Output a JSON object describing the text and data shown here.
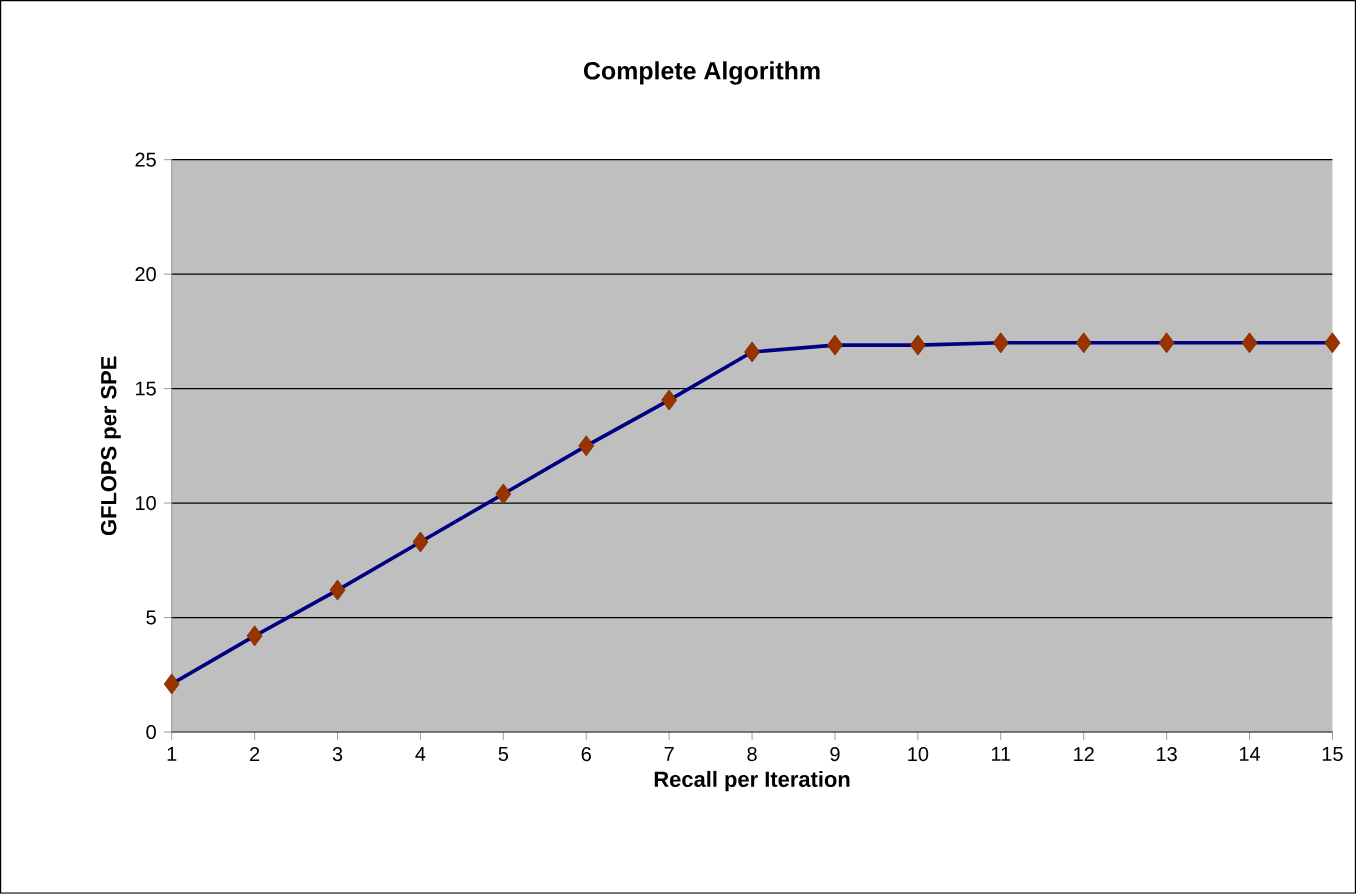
{
  "chart_data": {
    "type": "line",
    "title": "Complete Algorithm",
    "xlabel": "Recall per Iteration",
    "ylabel": "GFLOPS per SPE",
    "x": [
      1,
      2,
      3,
      4,
      5,
      6,
      7,
      8,
      9,
      10,
      11,
      12,
      13,
      14,
      15
    ],
    "series": [
      {
        "color": "#000080",
        "values": [
          2.1,
          4.2,
          6.2,
          8.3,
          10.4,
          12.5,
          14.5,
          16.6,
          16.9,
          16.9,
          17.0,
          17.0,
          17.0,
          17.0,
          17.0
        ]
      }
    ],
    "xlim": [
      1,
      15
    ],
    "xticks": [
      1,
      2,
      3,
      4,
      5,
      6,
      7,
      8,
      9,
      10,
      11,
      12,
      13,
      14,
      15
    ],
    "ylim": [
      0,
      25
    ],
    "yticks": [
      0,
      5,
      10,
      15,
      20,
      25
    ],
    "grid": "y",
    "marker": "diamond",
    "line_style": "solid"
  }
}
